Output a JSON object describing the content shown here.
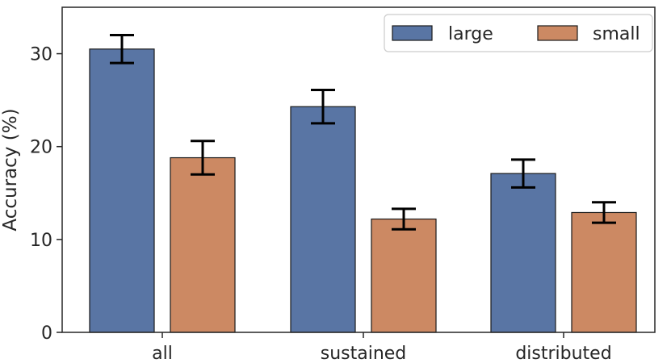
{
  "chart_data": {
    "type": "bar",
    "title": "",
    "xlabel": "",
    "ylabel": "Accuracy (%)",
    "ylim": [
      0,
      35
    ],
    "yticks": [
      0,
      10,
      20,
      30
    ],
    "grid": false,
    "legend_position": "top-right",
    "categories": [
      "all",
      "sustained",
      "distributed"
    ],
    "series": [
      {
        "name": "large",
        "color": "#5975a4",
        "values": [
          30.5,
          24.3,
          17.1
        ],
        "errors": [
          1.5,
          1.8,
          1.5
        ]
      },
      {
        "name": "small",
        "color": "#cc8963",
        "values": [
          18.8,
          12.2,
          12.9
        ],
        "errors": [
          1.8,
          1.1,
          1.1
        ]
      }
    ]
  }
}
